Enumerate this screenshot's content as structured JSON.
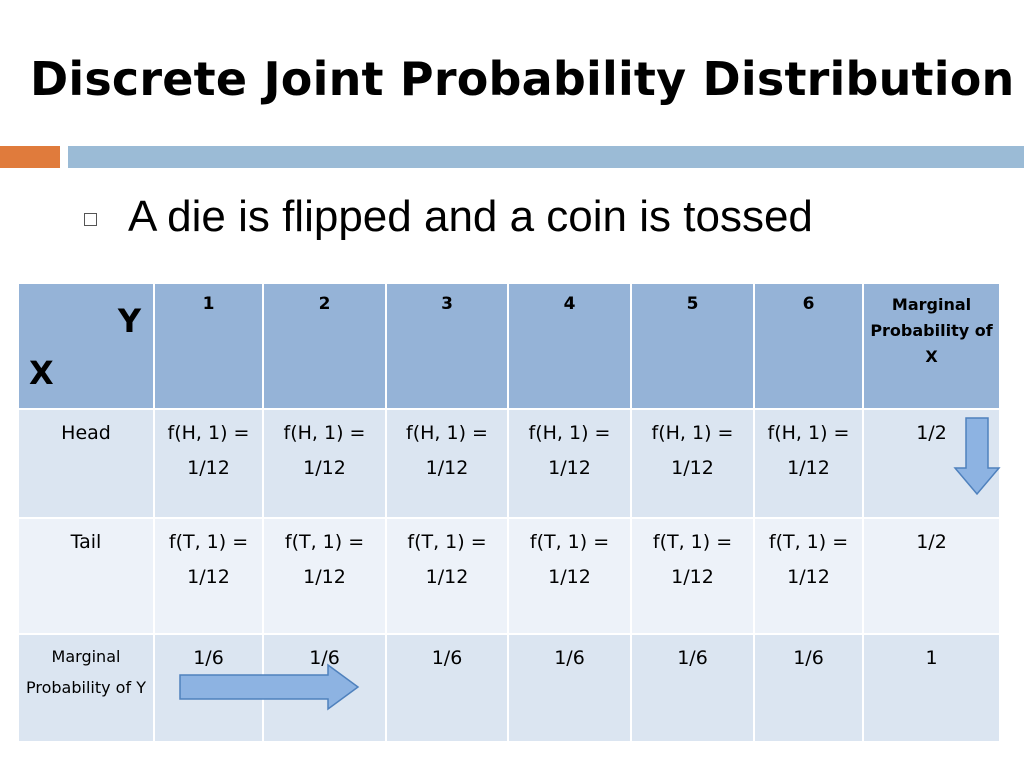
{
  "slide": {
    "title": "Discrete Joint Probability Distribution",
    "bullet": "A die is flipped and a coin is tossed"
  },
  "table": {
    "corner_y": "Y",
    "corner_x": "X",
    "columns": [
      "1",
      "2",
      "3",
      "4",
      "5",
      "6"
    ],
    "marginal_x_header": "Marginal Probability of X",
    "rows": [
      {
        "label": "Head",
        "cells": [
          "f(H, 1) = 1/12",
          "f(H, 1) = 1/12",
          "f(H, 1) = 1/12",
          "f(H, 1) = 1/12",
          "f(H, 1) = 1/12",
          "f(H, 1) = 1/12"
        ],
        "marginal": "1/2"
      },
      {
        "label": "Tail",
        "cells": [
          "f(T, 1) = 1/12",
          "f(T, 1) = 1/12",
          "f(T, 1) = 1/12",
          "f(T, 1) = 1/12",
          "f(T, 1) = 1/12",
          "f(T, 1) = 1/12"
        ],
        "marginal": "1/2"
      }
    ],
    "marginal_y": {
      "label": "Marginal Probability of Y",
      "cells": [
        "1/6",
        "1/6",
        "1/6",
        "1/6",
        "1/6",
        "1/6"
      ],
      "total": "1"
    }
  },
  "colors": {
    "header_bg": "#95b3d7",
    "row_bg_dark": "#dbe5f1",
    "row_bg_light": "#edf2f9",
    "accent_orange": "#e07b3c",
    "accent_blue": "#9bbbd6",
    "arrow_fill": "#8db3e2"
  }
}
